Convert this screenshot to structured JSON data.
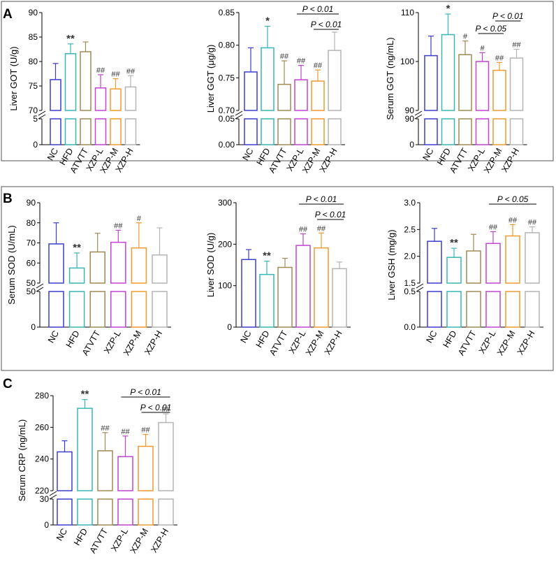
{
  "figure": {
    "panels": [
      {
        "id": "A",
        "label": "A"
      },
      {
        "id": "B",
        "label": "B"
      },
      {
        "id": "C",
        "label": "C"
      }
    ],
    "groups": [
      "NC",
      "HFD",
      "ATVTT",
      "XZP-L",
      "XZP-M",
      "XZP-H"
    ],
    "group_colors": [
      "#3c3ccf",
      "#39b5b5",
      "#a08a55",
      "#c243d4",
      "#ef9a2e",
      "#b4b4b4"
    ]
  },
  "chart_data": [
    {
      "id": "liver-got",
      "panel": "A",
      "type": "bar",
      "ylabel": "Liver GOT (U/g)",
      "categories": [
        "NC",
        "HFD",
        "ATVTT",
        "XZP-L",
        "XZP-M",
        "XZP-H"
      ],
      "values": [
        76.3,
        81.6,
        82.0,
        74.6,
        74.4,
        74.8
      ],
      "errors": [
        3.3,
        2.0,
        2.0,
        2.7,
        2.1,
        2.3
      ],
      "ylim": [
        70,
        90
      ],
      "yticks": [
        "70",
        "75",
        "80",
        "85",
        "90"
      ],
      "low_axis": {
        "range": [
          0,
          5
        ],
        "ticks": [
          "0",
          "5"
        ]
      },
      "annotations": [
        "",
        "**",
        "",
        "##",
        "##",
        "##"
      ],
      "comparisons": []
    },
    {
      "id": "liver-ggt",
      "panel": "A",
      "type": "bar",
      "ylabel": "Liver GGT (μg/g)",
      "categories": [
        "NC",
        "HFD",
        "ATVTT",
        "XZP-L",
        "XZP-M",
        "XZP-H"
      ],
      "values": [
        0.759,
        0.796,
        0.74,
        0.747,
        0.745,
        0.792
      ],
      "errors": [
        0.037,
        0.033,
        0.036,
        0.022,
        0.017,
        0.028
      ],
      "ylim": [
        0.7,
        0.85
      ],
      "yticks": [
        "0.70",
        "0.75",
        "0.80",
        "0.85"
      ],
      "low_axis": {
        "range": [
          0,
          0.05
        ],
        "ticks": [
          "0.00",
          "0.05"
        ]
      },
      "annotations": [
        "",
        "*",
        "##",
        "##",
        "##",
        ""
      ],
      "comparisons": [
        {
          "from": "XZP-L",
          "to": "XZP-H",
          "label": "P < 0.01"
        },
        {
          "from": "XZP-M",
          "to": "XZP-H",
          "label": "P < 0.01"
        }
      ]
    },
    {
      "id": "serum-ggt",
      "panel": "A",
      "type": "bar",
      "ylabel": "Serum GGT (ng/mL)",
      "categories": [
        "NC",
        "HFD",
        "ATVTT",
        "XZP-L",
        "XZP-M",
        "XZP-H"
      ],
      "values": [
        101.2,
        105.5,
        101.4,
        100.0,
        98.2,
        100.7
      ],
      "errors": [
        4.0,
        4.2,
        2.8,
        1.8,
        1.6,
        1.8
      ],
      "ylim": [
        90,
        110
      ],
      "yticks": [
        "90",
        "100",
        "110"
      ],
      "low_axis": {
        "range": [
          0,
          90
        ],
        "ticks": [
          "0",
          "90"
        ]
      },
      "annotations": [
        "",
        "*",
        "#",
        "#",
        "##",
        "##"
      ],
      "comparisons": [
        {
          "from": "XZP-L",
          "to": "XZP-M",
          "label": "P < 0.05"
        },
        {
          "from": "XZP-M",
          "to": "XZP-H",
          "label": "P < 0.01"
        }
      ]
    },
    {
      "id": "serum-sod",
      "panel": "B",
      "type": "bar",
      "ylabel": "Serum SOD (U/mL)",
      "categories": [
        "NC",
        "HFD",
        "ATVTT",
        "XZP-L",
        "XZP-M",
        "XZP-H"
      ],
      "values": [
        69.5,
        57.5,
        65.5,
        70.3,
        67.5,
        64.0
      ],
      "errors": [
        10.5,
        7.5,
        9.3,
        6.0,
        12.5,
        13.5
      ],
      "ylim": [
        50,
        90
      ],
      "yticks": [
        "50",
        "60",
        "70",
        "80",
        "90"
      ],
      "low_axis": {
        "range": [
          0,
          50
        ],
        "ticks": [
          "0",
          "50"
        ]
      },
      "annotations": [
        "",
        "**",
        "",
        "##",
        "#",
        ""
      ],
      "comparisons": []
    },
    {
      "id": "liver-sod",
      "panel": "B",
      "type": "bar",
      "ylabel": "Liver SOD (U/g)",
      "categories": [
        "NC",
        "HFD",
        "ATVTT",
        "XZP-L",
        "XZP-M",
        "XZP-H"
      ],
      "values": [
        163,
        127,
        144,
        197,
        191,
        141
      ],
      "errors": [
        24,
        32,
        22,
        28,
        36,
        16
      ],
      "ylim": [
        0,
        300
      ],
      "yticks": [
        "0",
        "100",
        "200",
        "300"
      ],
      "low_axis": null,
      "annotations": [
        "",
        "**",
        "",
        "##",
        "##",
        ""
      ],
      "comparisons": [
        {
          "from": "XZP-L",
          "to": "XZP-H",
          "label": "P < 0.01"
        },
        {
          "from": "XZP-M",
          "to": "XZP-H",
          "label": "P < 0.01"
        }
      ]
    },
    {
      "id": "liver-gsh",
      "panel": "B",
      "type": "bar",
      "ylabel": "Liver GSH (mg/g)",
      "categories": [
        "NC",
        "HFD",
        "ATVTT",
        "XZP-L",
        "XZP-M",
        "XZP-H"
      ],
      "values": [
        2.28,
        1.98,
        2.1,
        2.24,
        2.38,
        2.44
      ],
      "errors": [
        0.24,
        0.17,
        0.31,
        0.22,
        0.21,
        0.11
      ],
      "ylim": [
        1.5,
        3.0
      ],
      "yticks": [
        "1.5",
        "2.0",
        "2.5",
        "3.0"
      ],
      "low_axis": {
        "range": [
          0,
          0.5
        ],
        "ticks": [
          "0.0",
          "0.5"
        ]
      },
      "annotations": [
        "",
        "**",
        "",
        "##",
        "##",
        "##"
      ],
      "comparisons": [
        {
          "from": "XZP-L",
          "to": "XZP-H",
          "label": "P < 0.05"
        }
      ]
    },
    {
      "id": "serum-crp",
      "panel": "C",
      "type": "bar",
      "ylabel": "Serum CRP (ng/mL)",
      "categories": [
        "NC",
        "HFD",
        "ATVTT",
        "XZP-L",
        "XZP-M",
        "XZP-H"
      ],
      "values": [
        244.5,
        272.0,
        245.2,
        241.5,
        248.0,
        263.0
      ],
      "errors": [
        7.0,
        5.5,
        11.5,
        13.0,
        7.5,
        5.5
      ],
      "ylim": [
        220,
        280
      ],
      "yticks": [
        "220",
        "240",
        "260",
        "280"
      ],
      "low_axis": {
        "range": [
          0,
          30
        ],
        "ticks": [
          "0",
          "30"
        ]
      },
      "annotations": [
        "",
        "**",
        "##",
        "##",
        "##",
        "##"
      ],
      "comparisons": [
        {
          "from": "XZP-L",
          "to": "XZP-H",
          "label": "P < 0.01"
        },
        {
          "from": "XZP-M",
          "to": "XZP-H",
          "label": "P < 0.01"
        }
      ]
    }
  ]
}
